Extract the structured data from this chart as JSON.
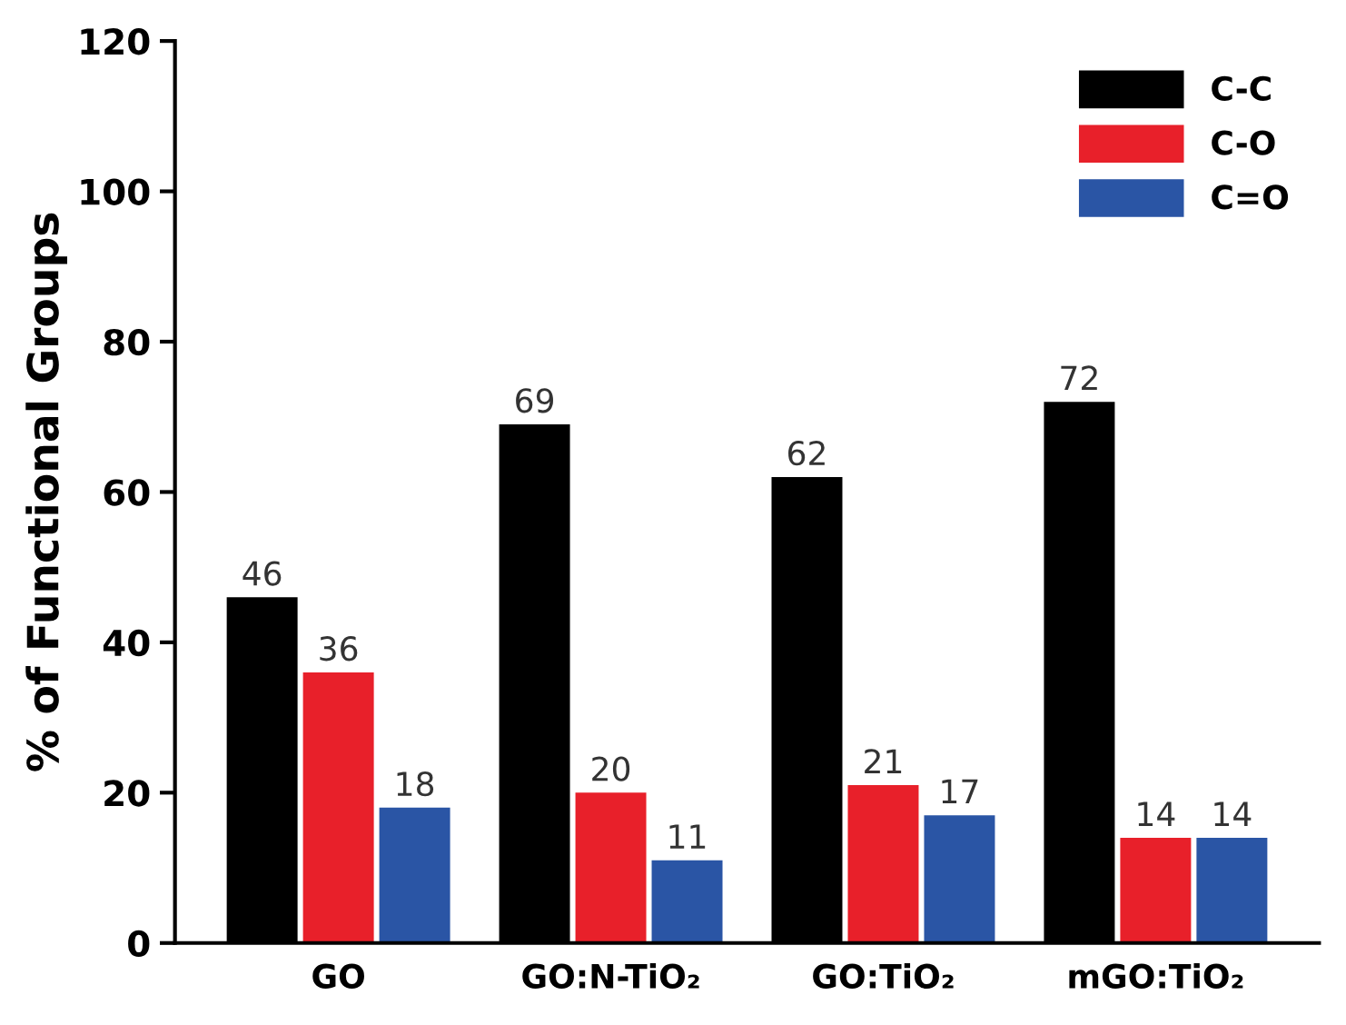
{
  "chart_data": {
    "type": "bar",
    "ylabel": "% of Functional Groups",
    "categories": [
      "GO",
      "GO:N-TiO₂",
      "GO:TiO₂",
      "mGO:TiO₂"
    ],
    "series": [
      {
        "name": "C-C",
        "color": "#000000",
        "values": [
          46,
          69,
          62,
          72
        ]
      },
      {
        "name": "C-O",
        "color": "#e8202a",
        "values": [
          36,
          20,
          21,
          14
        ]
      },
      {
        "name": "C=O",
        "color": "#2a55a5",
        "values": [
          18,
          11,
          17,
          14
        ]
      }
    ],
    "ylim": [
      0,
      120
    ],
    "yticks": [
      0,
      20,
      40,
      60,
      80,
      100,
      120
    ],
    "data_labels": true,
    "legend": "top right",
    "grid": false
  }
}
